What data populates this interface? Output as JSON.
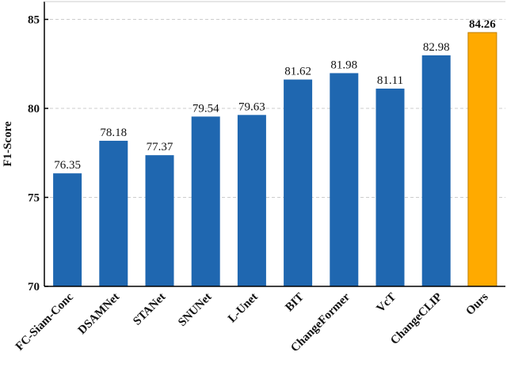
{
  "chart_data": {
    "type": "bar",
    "title": "",
    "xlabel": "",
    "ylabel": "F1-Score",
    "ylim": [
      70,
      86
    ],
    "yticks": [
      70,
      75,
      80,
      85
    ],
    "grid": "horizontal dashed",
    "categories": [
      "FC-Siam-Conc",
      "DSAMNet",
      "STANet",
      "SNUNet",
      "L-Unet",
      "BIT",
      "ChangeFormer",
      "VcT",
      "ChangeCLIP",
      "Ours"
    ],
    "values": [
      76.35,
      78.18,
      77.37,
      79.54,
      79.63,
      81.62,
      81.98,
      81.11,
      82.98,
      84.26
    ],
    "value_labels": [
      "76.35",
      "78.18",
      "77.37",
      "79.54",
      "79.63",
      "81.62",
      "81.98",
      "81.11",
      "82.98",
      "84.26"
    ],
    "colors": {
      "default_bar": "#1f67b0",
      "highlight_bar": "#ffaa00",
      "highlight_stroke": "#c08000",
      "grid": "#cccccc"
    },
    "highlight_index": 9
  }
}
